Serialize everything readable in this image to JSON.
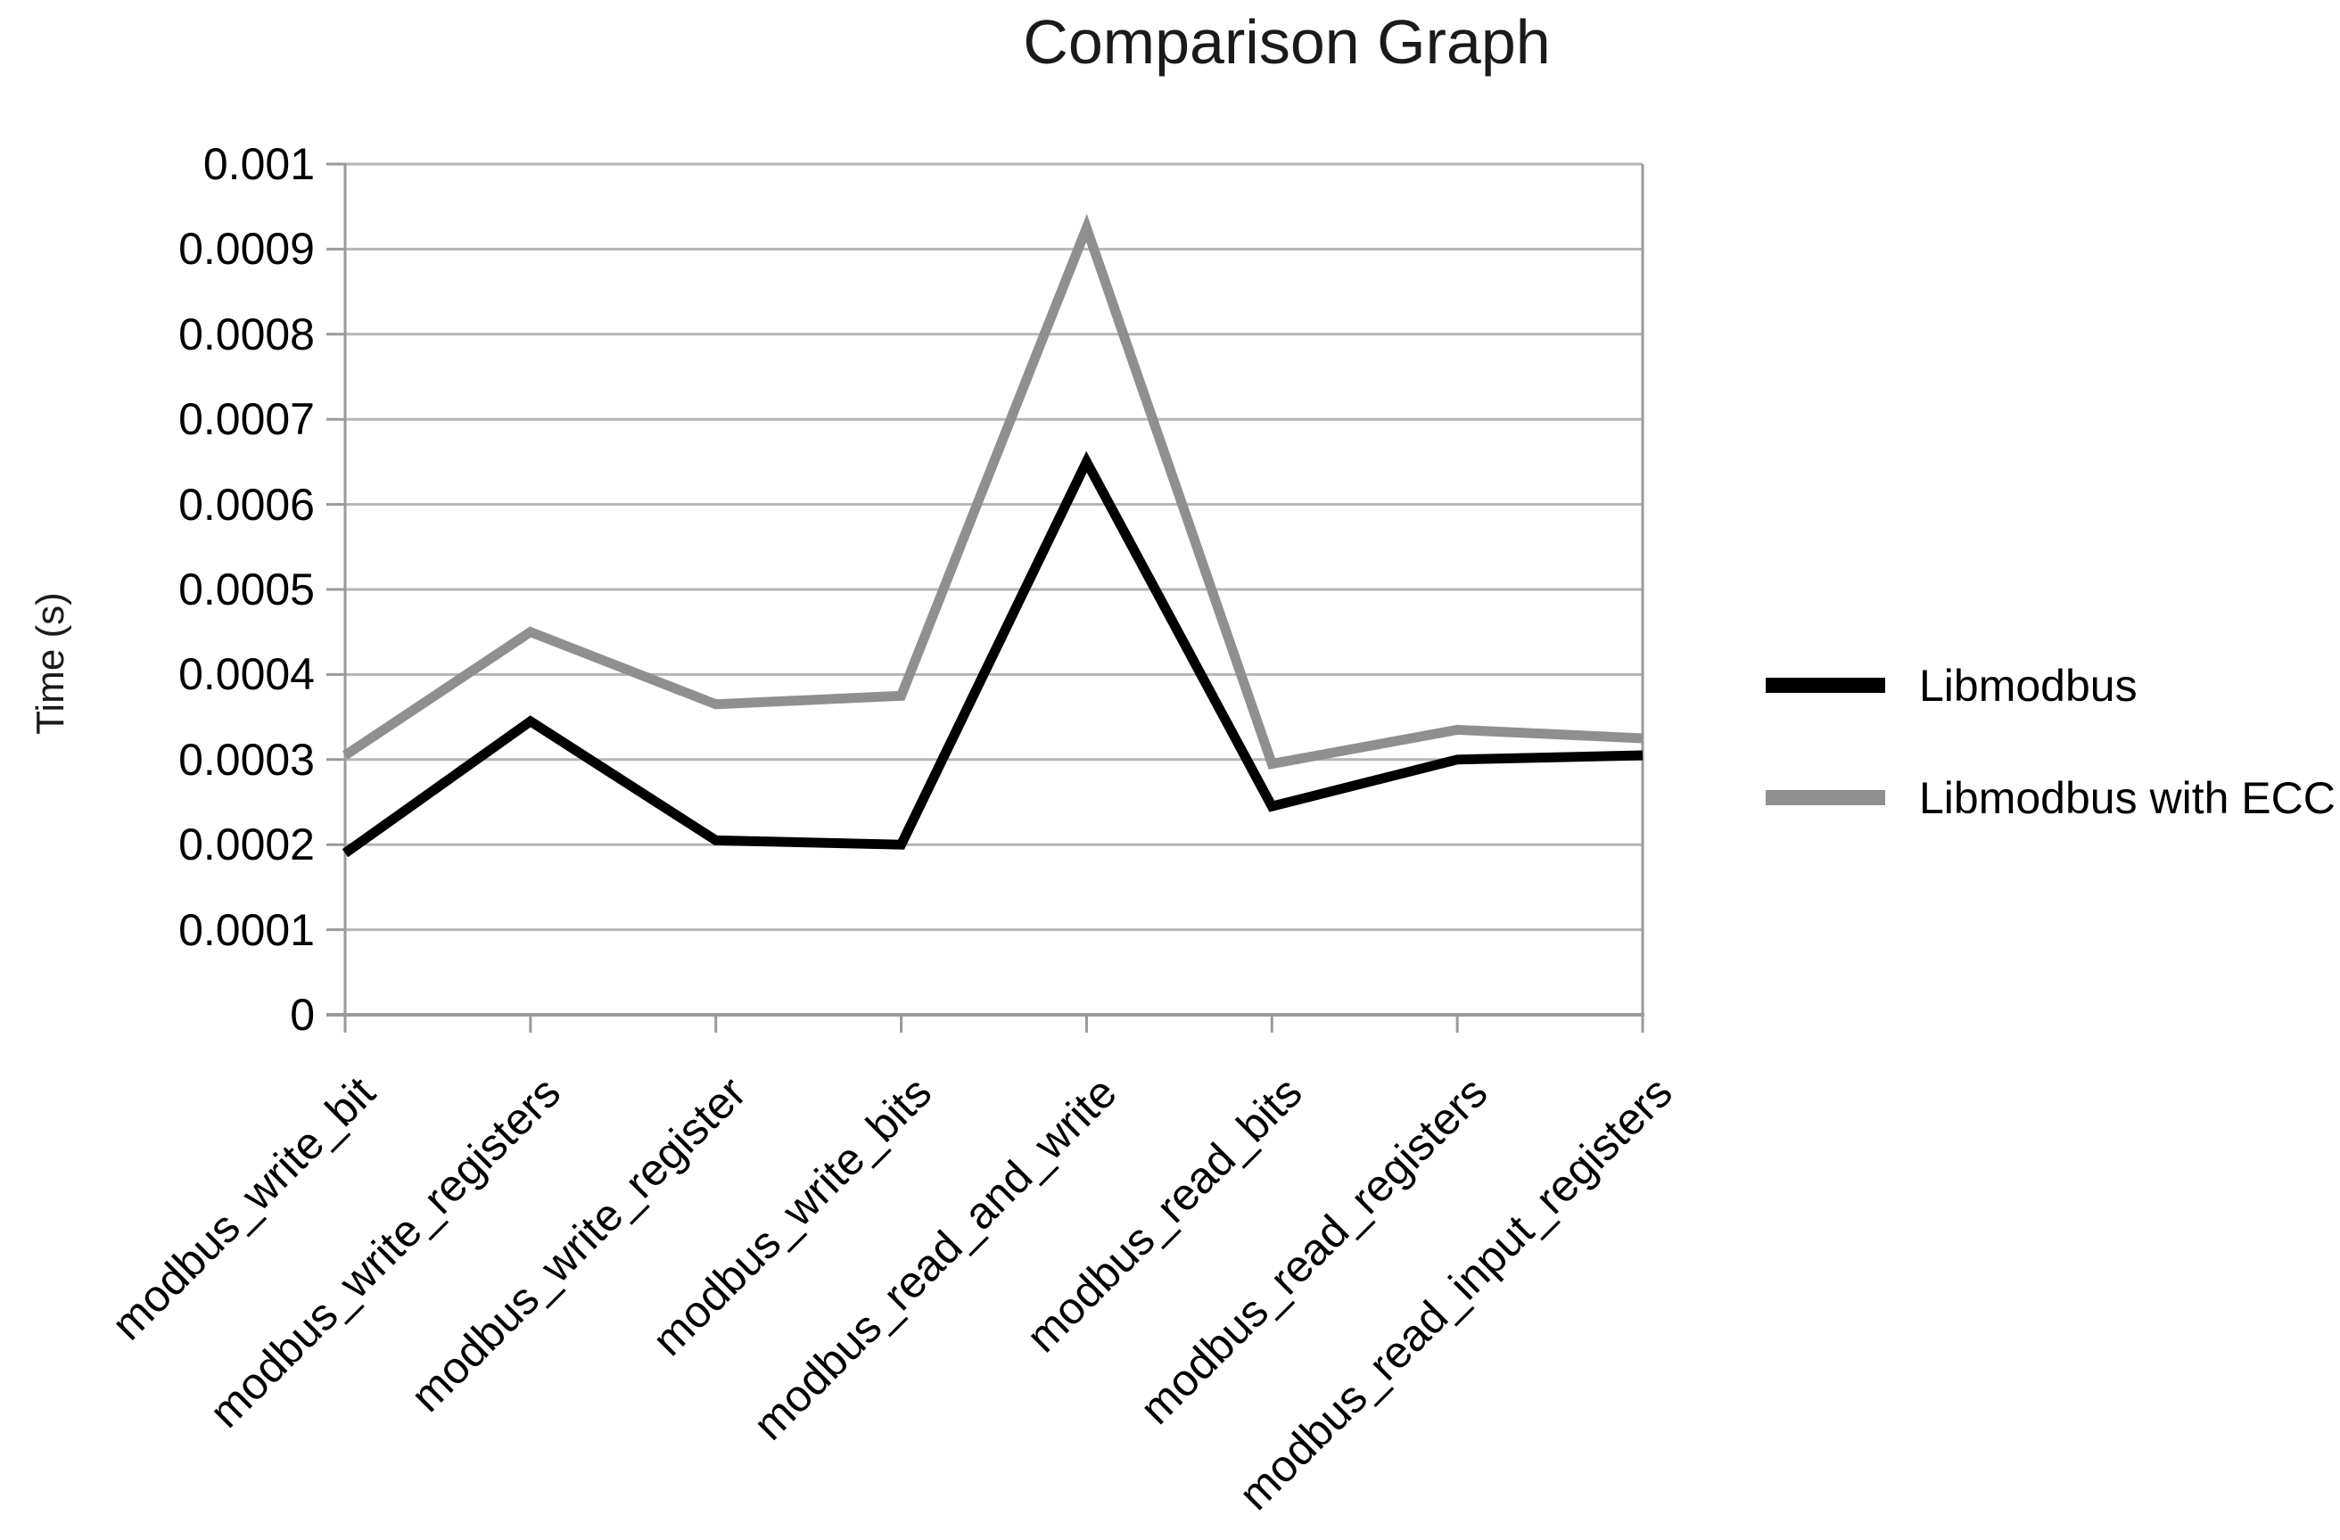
{
  "chart_data": {
    "type": "line",
    "title": "Comparison Graph",
    "xlabel": "",
    "ylabel": "Time (s)",
    "categories": [
      "modbus_write_bit",
      "modbus_write_registers",
      "modbus_write_register",
      "modbus_write_bits",
      "modbus_read_and_write",
      "modbus_read_bits",
      "modbus_read_registers",
      "modbus_read_input_registers"
    ],
    "series": [
      {
        "name": "Libmodbus",
        "color": "#000000",
        "values": [
          0.00019,
          0.000345,
          0.000205,
          0.0002,
          0.00065,
          0.000245,
          0.0003,
          0.000305
        ]
      },
      {
        "name": "Libmodbus with ECC",
        "color": "#8f8f8f",
        "values": [
          0.000305,
          0.00045,
          0.000365,
          0.000375,
          0.000925,
          0.000295,
          0.000335,
          0.000325
        ]
      }
    ],
    "ylim": [
      0,
      0.001
    ],
    "y_tick_step": 0.0001,
    "y_tick_labels": [
      "0",
      "0.0001",
      "0.0002",
      "0.0003",
      "0.0004",
      "0.0005",
      "0.0006",
      "0.0007",
      "0.0008",
      "0.0009",
      "0.001"
    ],
    "grid": true,
    "legend_position": "right"
  },
  "colors": {
    "gridline": "#b5b5b5",
    "axis": "#9a9a9a",
    "text": "#000000",
    "background": "#ffffff"
  }
}
